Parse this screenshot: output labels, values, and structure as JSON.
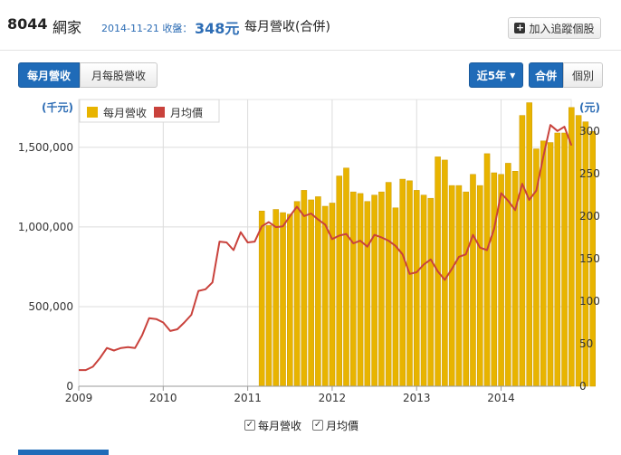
{
  "header": {
    "stock_code": "8044",
    "stock_name": "網家",
    "close_date_label": "2014-11-21 收盤：",
    "close_price": "348元",
    "page_title": "每月營收(合併)",
    "follow_button": "加入追蹤個股"
  },
  "tabs": {
    "monthly_revenue": "每月營收",
    "monthly_eps": "月每股營收"
  },
  "range": {
    "period_button": "近5年",
    "consolidated_button": "合併",
    "individual_button": "個別"
  },
  "legend": {
    "revenue": "每月營收",
    "price": "月均價"
  },
  "bottom_legend": {
    "revenue": "每月營收",
    "price": "月均價",
    "check": "✓"
  },
  "colors": {
    "bar": "#e8b400",
    "bar_edge": "#cc9a00",
    "line": "#c9423c",
    "axis_label": "#2d6db5",
    "active_button": "#1f6bb8"
  },
  "chart_data": {
    "type": "bar",
    "left_axis_unit": "(千元)",
    "right_axis_unit": "(元)",
    "x_ticks": [
      "2009",
      "2010",
      "2011",
      "2012",
      "2013",
      "2014"
    ],
    "left_ticks": [
      "0",
      "500,000",
      "1,000,000",
      "1,500,000"
    ],
    "right_ticks": [
      "0",
      "50",
      "100",
      "150",
      "200",
      "250",
      "300"
    ],
    "ylim_left": [
      0,
      1800000
    ],
    "ylim_right": [
      0,
      337
    ],
    "xlim": [
      2009.0,
      2014.83
    ],
    "series": [
      {
        "name": "每月營收",
        "type": "bar",
        "axis": "left",
        "start": 2011.167,
        "values": [
          1100000,
          1010000,
          1110000,
          1090000,
          1080000,
          1160000,
          1230000,
          1170000,
          1190000,
          1130000,
          1150000,
          1320000,
          1370000,
          1220000,
          1210000,
          1160000,
          1200000,
          1220000,
          1280000,
          1120000,
          1300000,
          1290000,
          1230000,
          1200000,
          1180000,
          1440000,
          1420000,
          1260000,
          1260000,
          1220000,
          1330000,
          1260000,
          1460000,
          1340000,
          1330000,
          1400000,
          1350000,
          1700000,
          1780000,
          1490000,
          1540000,
          1530000,
          1590000,
          1590000,
          1750000,
          1700000,
          1660000,
          1600000
        ]
      },
      {
        "name": "月均價",
        "type": "line",
        "axis": "right",
        "x": [
          2009.0,
          2009.083,
          2009.167,
          2009.25,
          2009.333,
          2009.417,
          2009.5,
          2009.583,
          2009.667,
          2009.75,
          2009.833,
          2009.917,
          2010.0,
          2010.083,
          2010.167,
          2010.25,
          2010.333,
          2010.417,
          2010.5,
          2010.583,
          2010.667,
          2010.75,
          2010.833,
          2010.917,
          2011.0,
          2011.083,
          2011.167,
          2011.25,
          2011.333,
          2011.417,
          2011.5,
          2011.583,
          2011.667,
          2011.75,
          2011.833,
          2011.917,
          2012.0,
          2012.083,
          2012.167,
          2012.25,
          2012.333,
          2012.417,
          2012.5,
          2012.583,
          2012.667,
          2012.75,
          2012.833,
          2012.917,
          2013.0,
          2013.083,
          2013.167,
          2013.25,
          2013.333,
          2013.417,
          2013.5,
          2013.583,
          2013.667,
          2013.75,
          2013.833,
          2013.917,
          2014.0,
          2014.083,
          2014.167,
          2014.25,
          2014.333,
          2014.417,
          2014.5,
          2014.583,
          2014.667,
          2014.75,
          2014.833
        ],
        "values": [
          19,
          19,
          23,
          33,
          45,
          42,
          45,
          46,
          45,
          60,
          80,
          79,
          75,
          65,
          67,
          75,
          84,
          112,
          114,
          122,
          170,
          169,
          160,
          181,
          169,
          170,
          188,
          193,
          187,
          188,
          200,
          211,
          200,
          203,
          196,
          190,
          173,
          177,
          179,
          168,
          171,
          164,
          178,
          175,
          171,
          165,
          155,
          132,
          134,
          143,
          149,
          135,
          125,
          138,
          152,
          155,
          178,
          163,
          160,
          185,
          227,
          218,
          207,
          238,
          219,
          230,
          270,
          307,
          300,
          305,
          283
        ]
      }
    ]
  }
}
